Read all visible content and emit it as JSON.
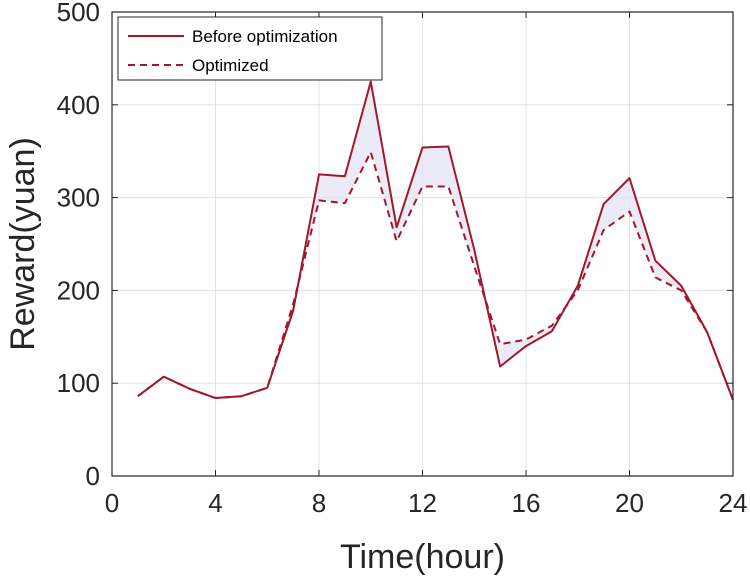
{
  "chart_data": {
    "type": "line",
    "xlabel": "Time(hour)",
    "ylabel": "Reward(yuan)",
    "xlim": [
      0,
      24
    ],
    "ylim": [
      0,
      500
    ],
    "xticks": [
      0,
      4,
      8,
      12,
      16,
      20,
      24
    ],
    "yticks": [
      0,
      100,
      200,
      300,
      400,
      500
    ],
    "grid": true,
    "legend_position": "top-left",
    "fill_between_series": true,
    "colors": {
      "line": "#a0182a",
      "fill": "#e6e6f5",
      "grid": "#e3e3e3",
      "axis": "#262626"
    },
    "x": [
      1,
      2,
      3,
      4,
      5,
      6,
      7,
      8,
      9,
      10,
      11,
      12,
      13,
      14,
      15,
      16,
      17,
      18,
      19,
      20,
      21,
      22,
      23,
      24
    ],
    "series": [
      {
        "name": "Before optimization",
        "style": "solid",
        "values": [
          86,
          107,
          94,
          84,
          86,
          95,
          178,
          325,
          323,
          425,
          268,
          354,
          355,
          244,
          118,
          140,
          156,
          205,
          293,
          321,
          232,
          205,
          155,
          82
        ]
      },
      {
        "name": "Optimized",
        "style": "dashed",
        "values": [
          86,
          107,
          94,
          84,
          86,
          95,
          185,
          297,
          294,
          349,
          253,
          312,
          312,
          226,
          142,
          147,
          162,
          200,
          265,
          285,
          214,
          200,
          155,
          82
        ]
      }
    ]
  }
}
